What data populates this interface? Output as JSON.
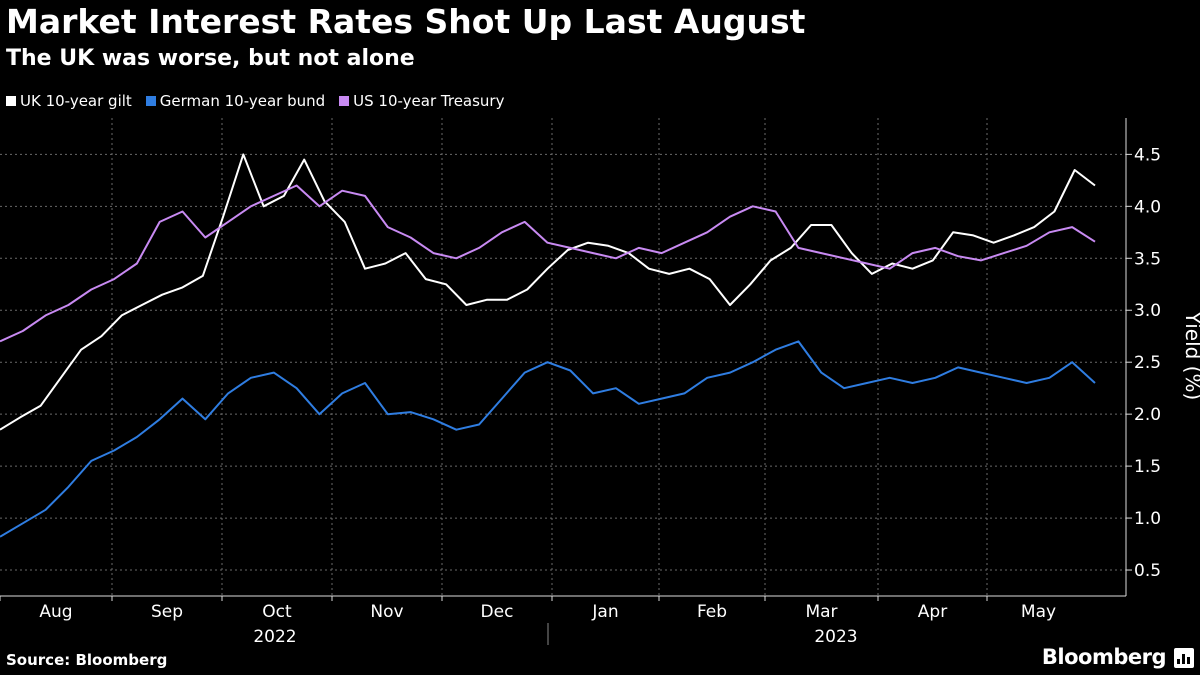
{
  "title": "Market Interest Rates Shot Up Last August",
  "subtitle": "The UK was worse, but not alone",
  "source": "Source: Bloomberg",
  "brand": "Bloomberg",
  "chart_data": {
    "type": "line",
    "ylabel": "Yield (%)",
    "ylim": [
      0.25,
      4.85
    ],
    "yticks": [
      0.5,
      1.0,
      1.5,
      2.0,
      2.5,
      3.0,
      3.5,
      4.0,
      4.5
    ],
    "ytick_labels": [
      "0.5",
      "1.0",
      "1.5",
      "2.0",
      "2.5",
      "3.0",
      "3.5",
      "4.0",
      "4.5"
    ],
    "months": [
      "Aug",
      "Sep",
      "Oct",
      "Nov",
      "Dec",
      "Jan",
      "Feb",
      "Mar",
      "Apr",
      "May"
    ],
    "years": [
      "2022",
      "2023"
    ],
    "x_description": "Weekly points, Aug 1 2022 to end of May 2023",
    "grid": true,
    "legend_position": "top-left",
    "series": [
      {
        "name": "UK 10-year gilt",
        "color": "#ffffff",
        "values": [
          1.85,
          1.97,
          2.08,
          2.35,
          2.62,
          2.75,
          2.95,
          3.05,
          3.15,
          3.22,
          3.33,
          3.9,
          4.5,
          4.0,
          4.1,
          4.45,
          4.05,
          3.85,
          3.4,
          3.45,
          3.55,
          3.3,
          3.25,
          3.05,
          3.1,
          3.1,
          3.2,
          3.4,
          3.58,
          3.65,
          3.62,
          3.55,
          3.4,
          3.35,
          3.4,
          3.3,
          3.05,
          3.25,
          3.48,
          3.6,
          3.82,
          3.82,
          3.55,
          3.35,
          3.45,
          3.4,
          3.48,
          3.75,
          3.72,
          3.65,
          3.72,
          3.8,
          3.95,
          4.35,
          4.2
        ]
      },
      {
        "name": "German 10-year bund",
        "color": "#2f7de1",
        "values": [
          0.82,
          0.95,
          1.08,
          1.3,
          1.55,
          1.65,
          1.78,
          1.95,
          2.15,
          1.95,
          2.2,
          2.35,
          2.4,
          2.25,
          2.0,
          2.2,
          2.3,
          2.0,
          2.02,
          1.95,
          1.85,
          1.9,
          2.15,
          2.4,
          2.5,
          2.42,
          2.2,
          2.25,
          2.1,
          2.15,
          2.2,
          2.35,
          2.4,
          2.5,
          2.62,
          2.7,
          2.4,
          2.25,
          2.3,
          2.35,
          2.3,
          2.35,
          2.45,
          2.4,
          2.35,
          2.3,
          2.35,
          2.5,
          2.3
        ]
      },
      {
        "name": "US 10-year Treasury",
        "color": "#c88af2",
        "values": [
          2.7,
          2.8,
          2.95,
          3.05,
          3.2,
          3.3,
          3.45,
          3.85,
          3.95,
          3.7,
          3.85,
          4.0,
          4.1,
          4.2,
          4.0,
          4.15,
          4.1,
          3.8,
          3.7,
          3.55,
          3.5,
          3.6,
          3.75,
          3.85,
          3.65,
          3.6,
          3.55,
          3.5,
          3.6,
          3.55,
          3.65,
          3.75,
          3.9,
          4.0,
          3.95,
          3.6,
          3.55,
          3.5,
          3.45,
          3.4,
          3.55,
          3.6,
          3.52,
          3.48,
          3.55,
          3.62,
          3.75,
          3.8,
          3.66
        ]
      }
    ]
  }
}
